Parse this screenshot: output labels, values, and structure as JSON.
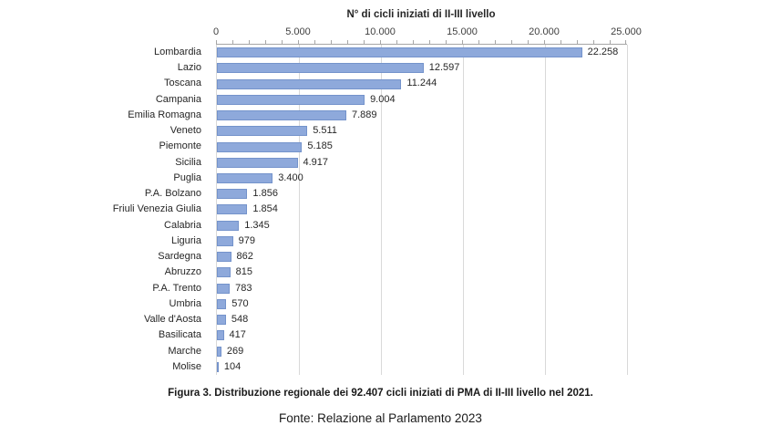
{
  "chart_data": {
    "type": "bar",
    "orientation": "horizontal",
    "title": "N° di cicli iniziati di II-III livello",
    "categories": [
      "Lombardia",
      "Lazio",
      "Toscana",
      "Campania",
      "Emilia Romagna",
      "Veneto",
      "Piemonte",
      "Sicilia",
      "Puglia",
      "P.A. Bolzano",
      "Friuli Venezia Giulia",
      "Calabria",
      "Liguria",
      "Sardegna",
      "Abruzzo",
      "P.A. Trento",
      "Umbria",
      "Valle d'Aosta",
      "Basilicata",
      "Marche",
      "Molise"
    ],
    "values": [
      22258,
      12597,
      11244,
      9004,
      7889,
      5511,
      5185,
      4917,
      3400,
      1856,
      1854,
      1345,
      979,
      862,
      815,
      783,
      570,
      548,
      417,
      269,
      104
    ],
    "value_labels": [
      "22.258",
      "12.597",
      "11.244",
      "9.004",
      "7.889",
      "5.511",
      "5.185",
      "4.917",
      "3.400",
      "1.856",
      "1.854",
      "1.345",
      "979",
      "862",
      "815",
      "783",
      "570",
      "548",
      "417",
      "269",
      "104"
    ],
    "xlim": [
      0,
      25000
    ],
    "x_tick_values": [
      0,
      5000,
      10000,
      15000,
      20000,
      25000
    ],
    "x_tick_labels": [
      "0",
      "5.000",
      "10.000",
      "15.000",
      "20.000",
      "25.000"
    ],
    "minor_tick_step": 1000,
    "grid": true,
    "legend_position": "none",
    "bar_color": "#8EA9DB",
    "gridline_color": "#D9D9D9",
    "axis_color": "#A6A6A6"
  },
  "caption": {
    "figure": "Figura 3. Distribuzione regionale dei 92.407 cicli iniziati di PMA di II-III livello nel 2021.",
    "source": "Fonte: Relazione al Parlamento 2023"
  }
}
